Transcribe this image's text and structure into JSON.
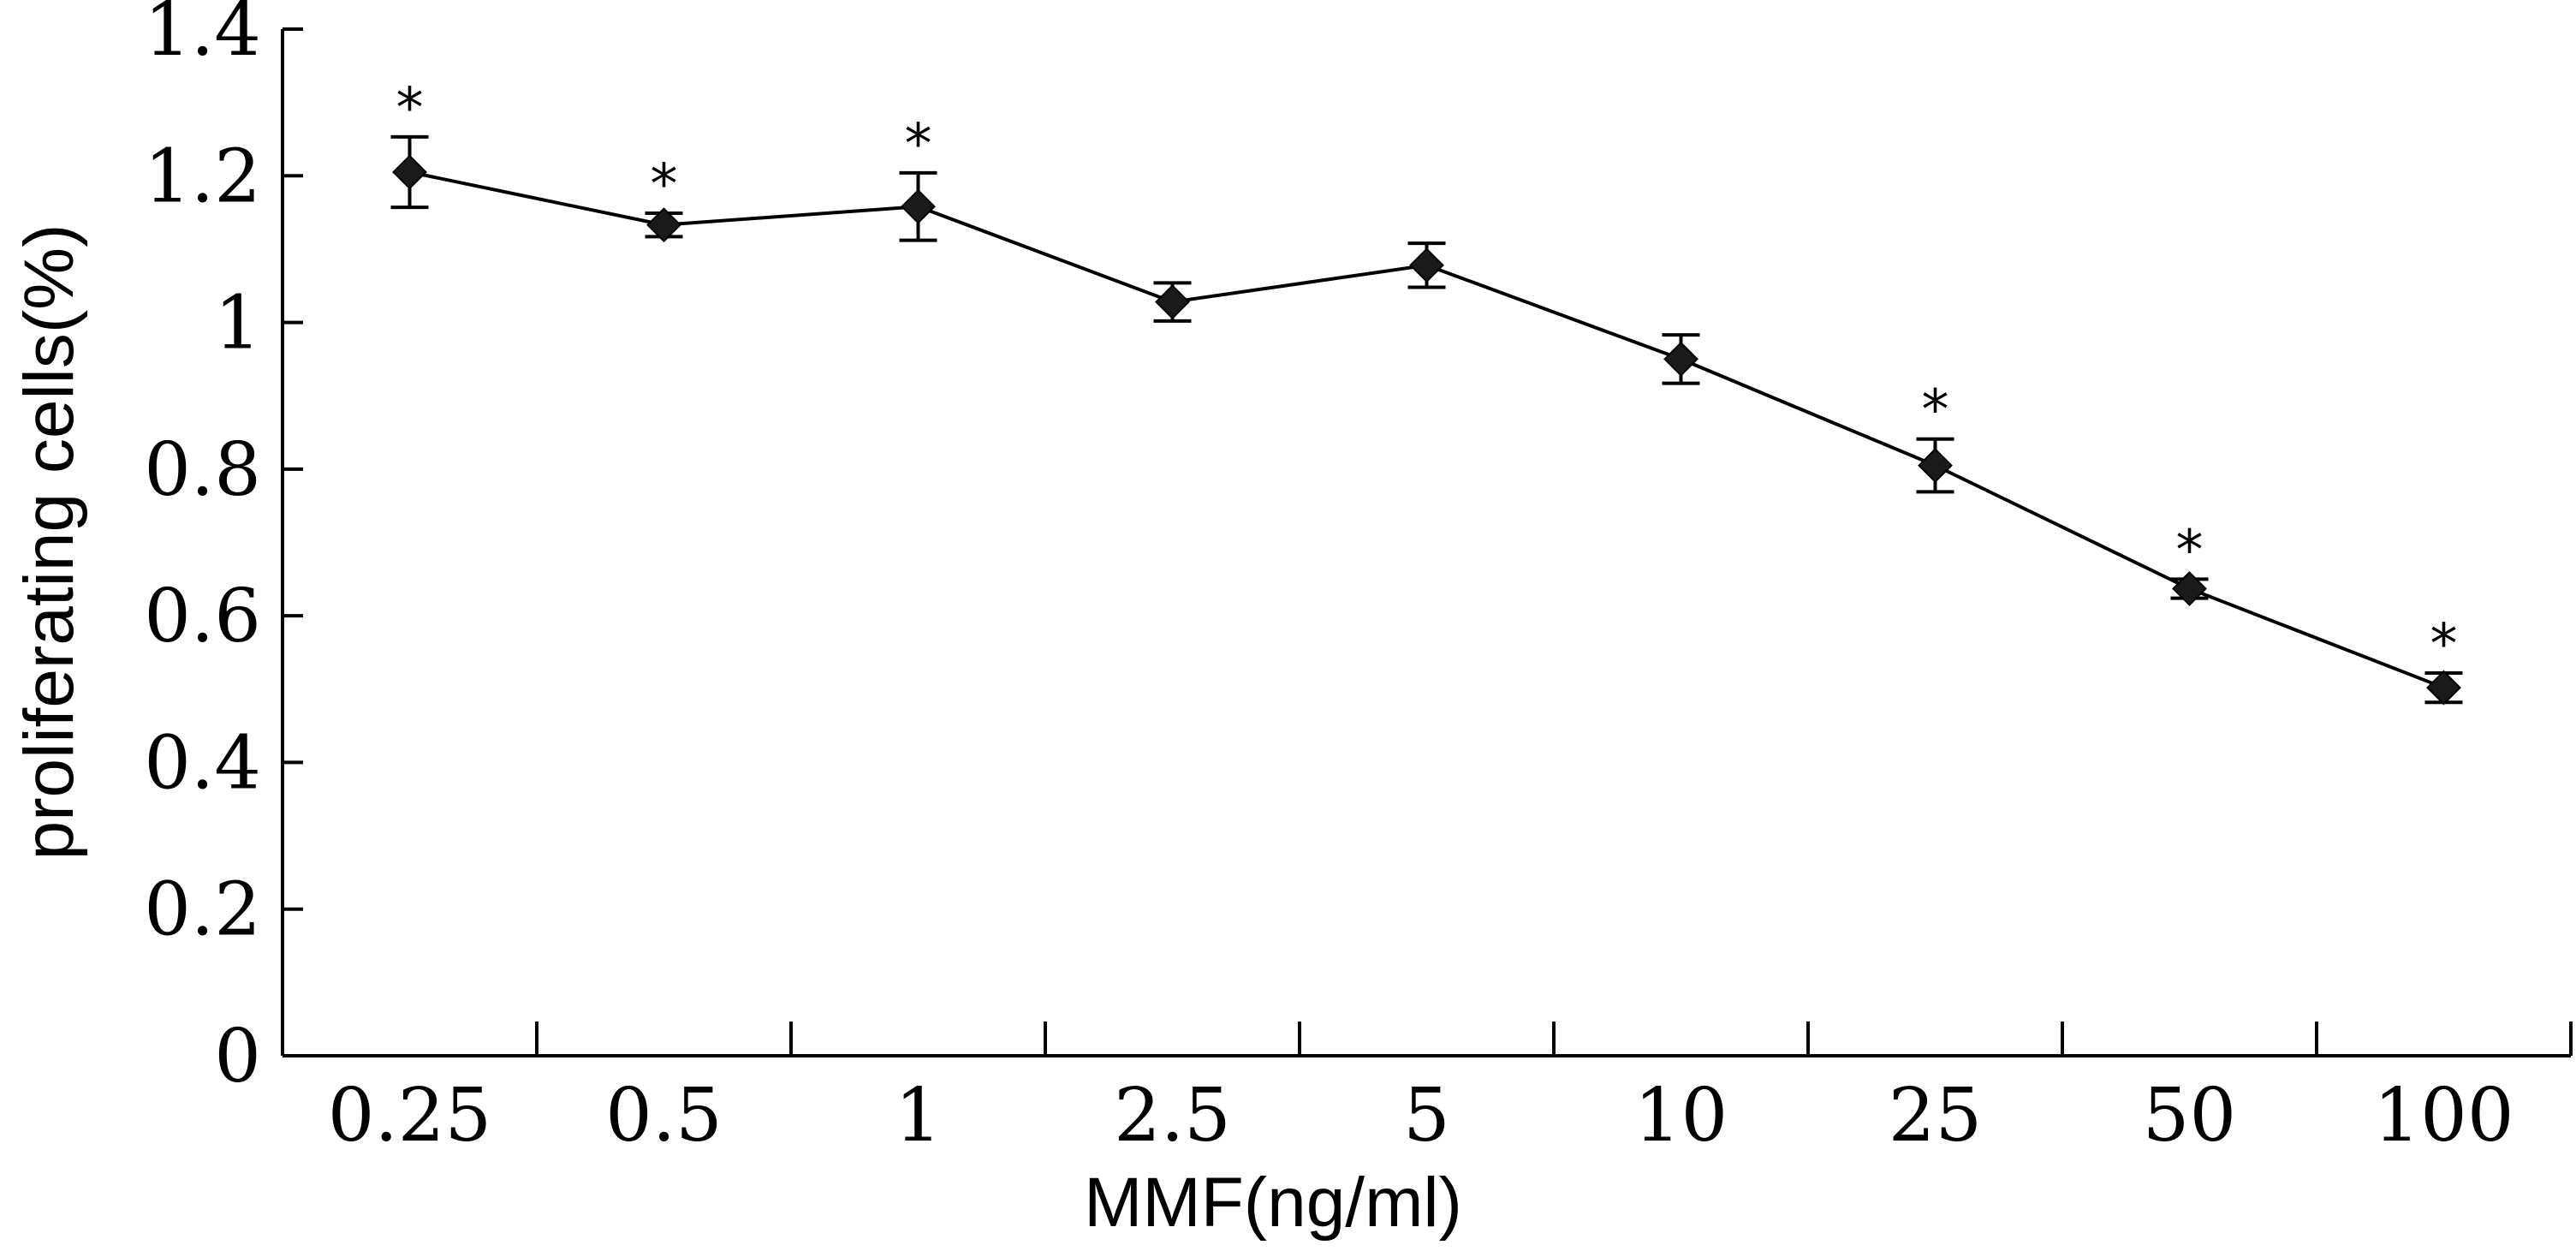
{
  "chart_data": {
    "type": "line",
    "title": "",
    "xlabel": "MMF(ng/ml)",
    "ylabel": "proliferating cells(%)",
    "categories": [
      "0.25",
      "0.5",
      "1",
      "2.5",
      "5",
      "10",
      "25",
      "50",
      "100"
    ],
    "ylim": [
      0,
      1.4
    ],
    "yticks": [
      "0",
      "0.2",
      "0.4",
      "0.6",
      "0.8",
      "1",
      "1.2",
      "1.4"
    ],
    "grid": false,
    "legend": "none",
    "series": [
      {
        "values": [
          1.205,
          1.133,
          1.158,
          1.028,
          1.078,
          0.95,
          0.805,
          0.637,
          0.502
        ],
        "error": [
          0.048,
          0.016,
          0.046,
          0.026,
          0.03,
          0.033,
          0.036,
          0.013,
          0.02
        ],
        "significance": [
          "*",
          "*",
          "*",
          "",
          "",
          "",
          "*",
          "*",
          "*"
        ],
        "color": "#000000",
        "marker": "diamond"
      }
    ]
  }
}
